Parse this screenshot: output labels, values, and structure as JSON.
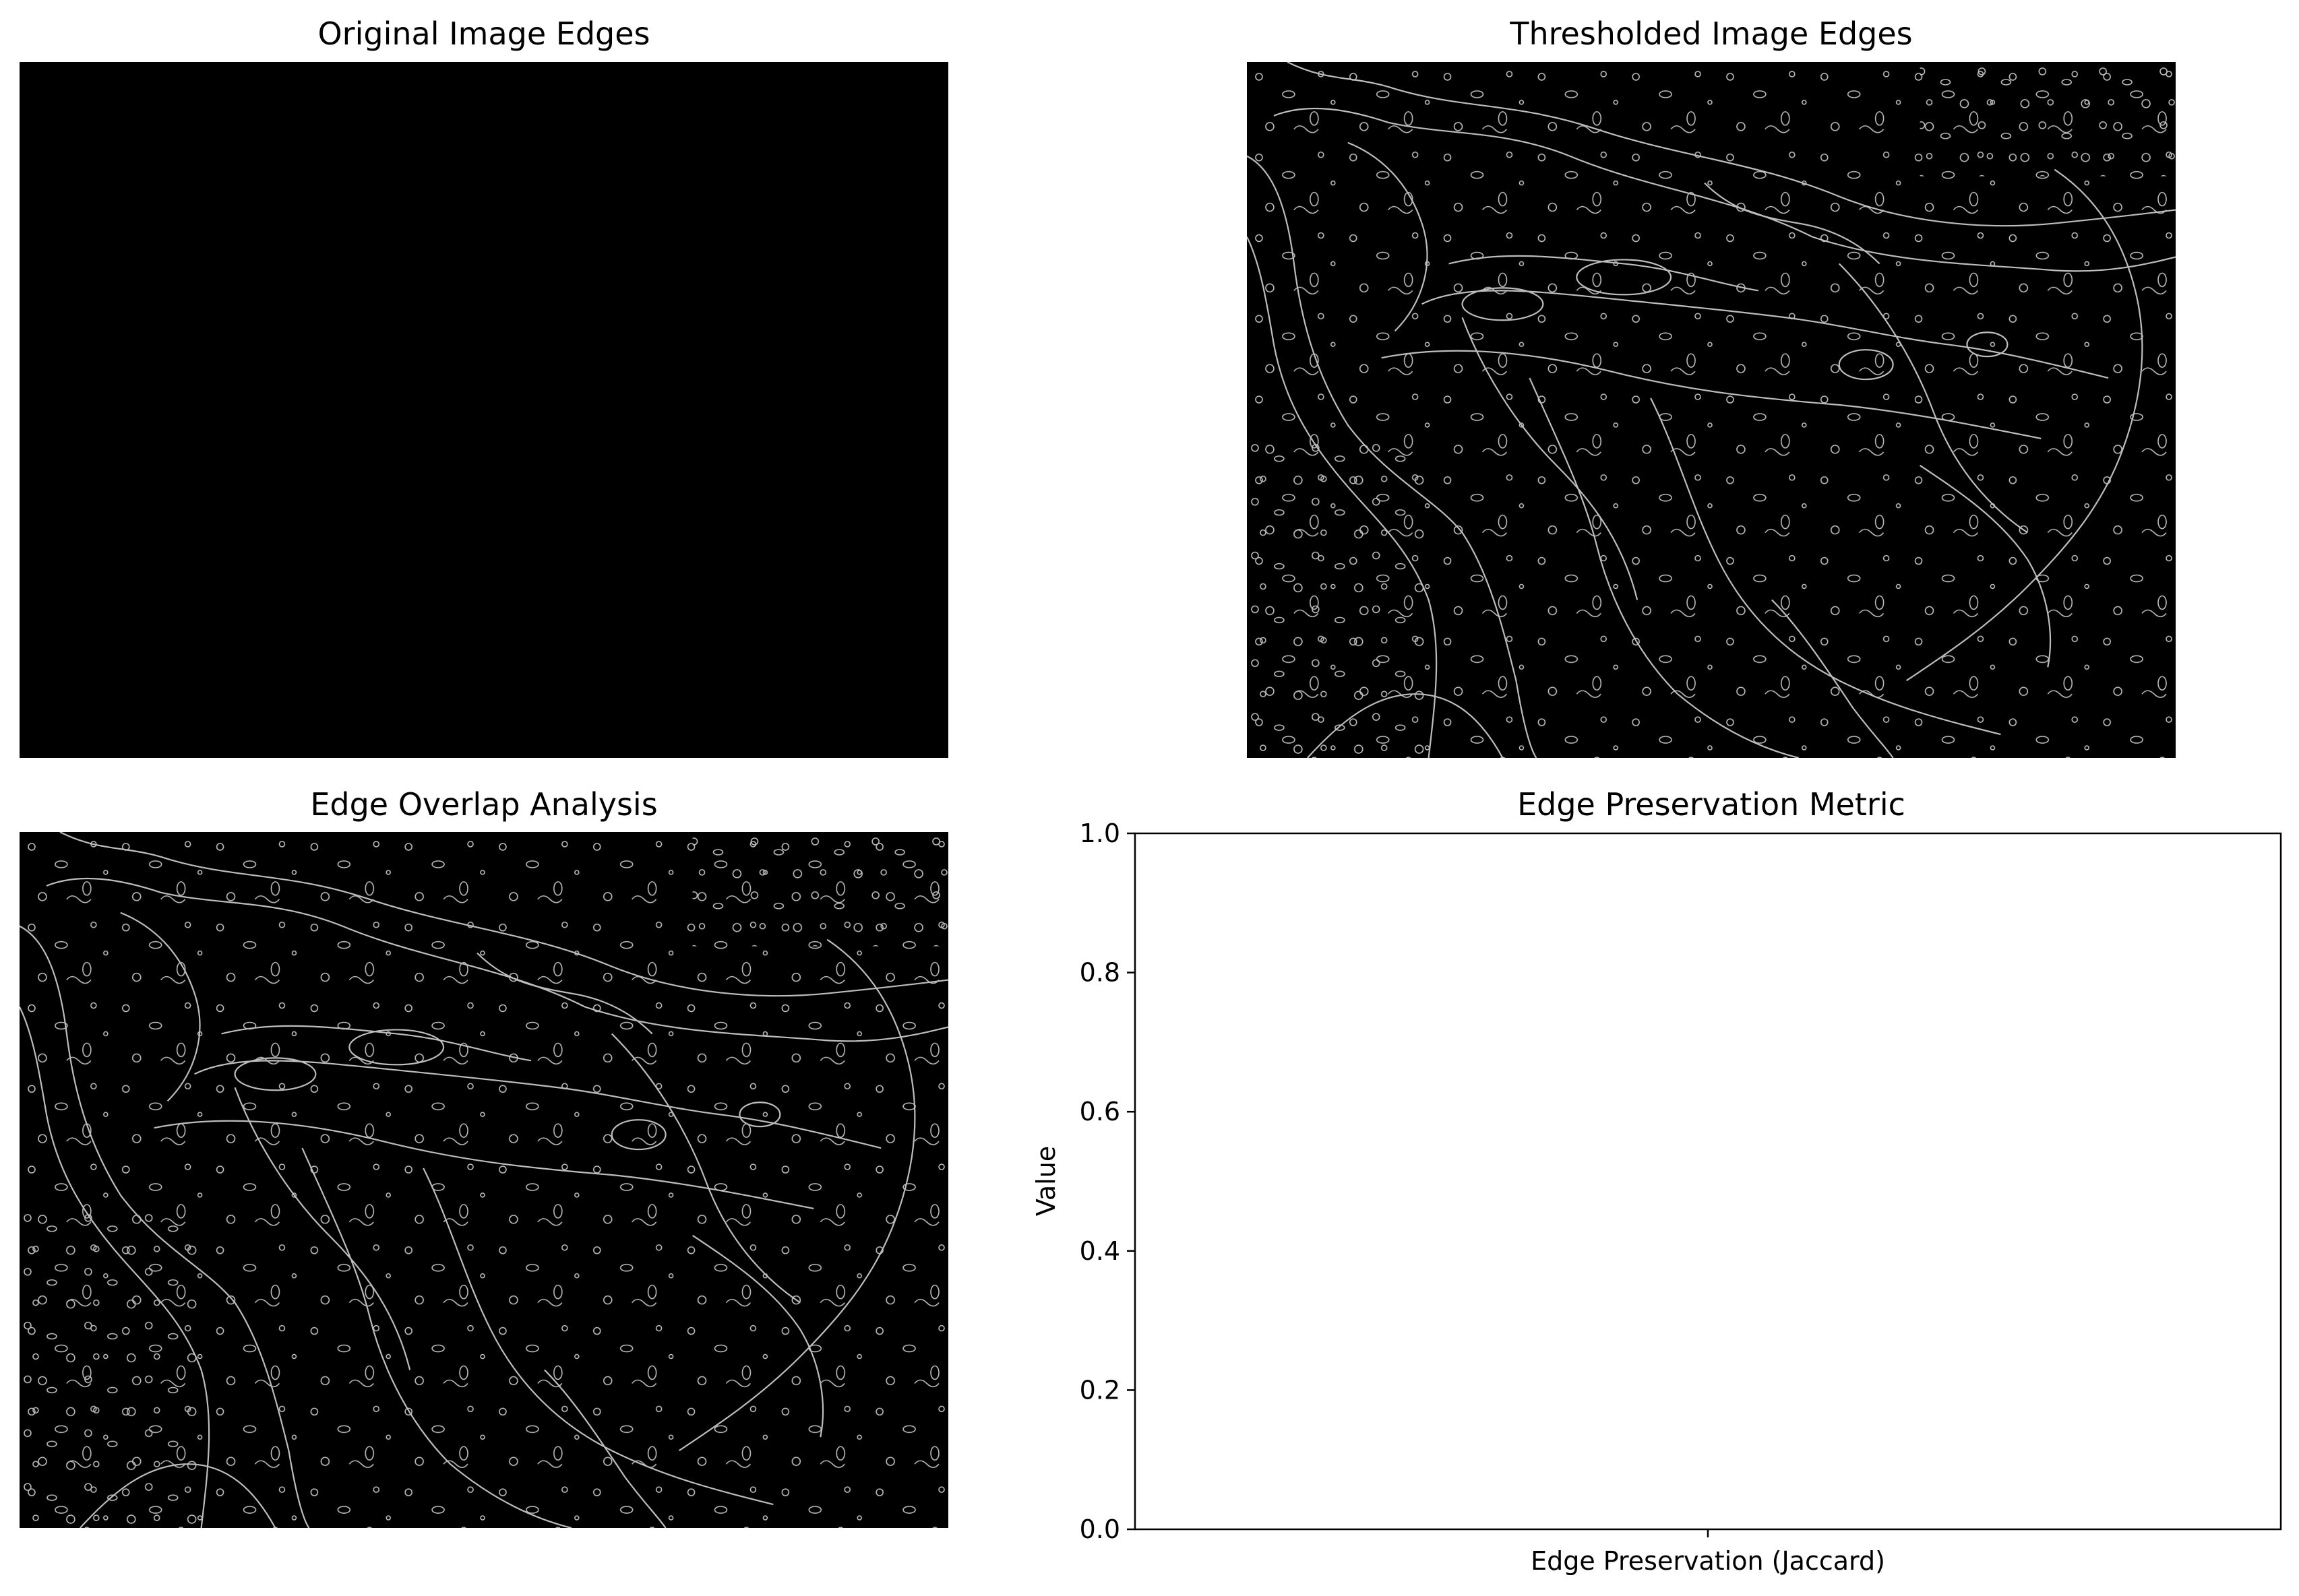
{
  "panels": {
    "original": {
      "title": "Original Image Edges"
    },
    "thresholded": {
      "title": "Thresholded Image Edges"
    },
    "overlap": {
      "title": "Edge Overlap Analysis"
    }
  },
  "chart_data": {
    "type": "bar",
    "title": "Edge Preservation Metric",
    "categories": [
      "Edge Preservation (Jaccard)"
    ],
    "values": [
      0.0
    ],
    "xlabel": "",
    "ylabel": "Value",
    "ylim": [
      0,
      1
    ],
    "yticks": [
      0.0,
      0.2,
      0.4,
      0.6,
      0.8,
      1.0
    ],
    "grid": false
  },
  "colors": {
    "image_background": "#000000",
    "edge_lines": "#bdbdbd",
    "axes_background": "#ffffff",
    "axes_frame": "#000000"
  }
}
